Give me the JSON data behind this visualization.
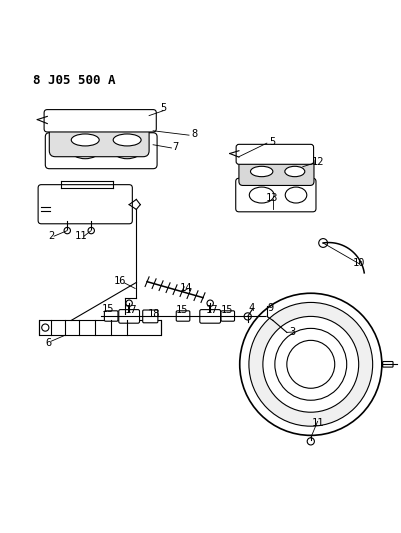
{
  "title": "8 J05 500 A",
  "bg_color": "#ffffff",
  "line_color": "#000000",
  "title_fontsize": 9,
  "label_fontsize": 7.5,
  "fig_width": 4.02,
  "fig_height": 5.33,
  "dpi": 100
}
